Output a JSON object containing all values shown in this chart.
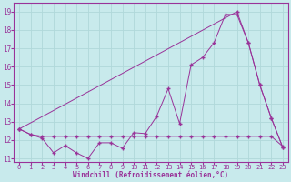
{
  "xlabel": "Windchill (Refroidissement éolien,°C)",
  "background_color": "#c8eaec",
  "grid_color": "#b0d8da",
  "line_color": "#993399",
  "xlim": [
    -0.5,
    23.5
  ],
  "ylim": [
    10.8,
    19.5
  ],
  "xticks": [
    0,
    1,
    2,
    3,
    4,
    5,
    6,
    7,
    8,
    9,
    10,
    11,
    12,
    13,
    14,
    15,
    16,
    17,
    18,
    19,
    20,
    21,
    22,
    23
  ],
  "yticks": [
    11,
    12,
    13,
    14,
    15,
    16,
    17,
    18,
    19
  ],
  "line1_x": [
    0,
    1,
    2,
    3,
    4,
    5,
    6,
    7,
    8,
    9,
    10,
    11,
    12,
    13,
    14,
    15,
    16,
    17,
    18,
    19,
    20,
    21,
    22,
    23
  ],
  "line1_y": [
    12.6,
    12.3,
    12.1,
    11.3,
    11.7,
    11.3,
    11.0,
    11.85,
    11.85,
    11.55,
    12.4,
    12.35,
    13.3,
    14.8,
    12.9,
    16.1,
    16.5,
    17.3,
    18.85,
    18.85,
    17.3,
    15.0,
    13.2,
    11.6
  ],
  "line2_x": [
    0,
    1,
    2,
    3,
    4,
    5,
    6,
    7,
    8,
    9,
    10,
    11,
    12,
    13,
    14,
    15,
    16,
    17,
    18,
    19,
    20,
    21,
    22,
    23
  ],
  "line2_y": [
    12.6,
    12.3,
    12.2,
    12.2,
    12.2,
    12.2,
    12.2,
    12.2,
    12.2,
    12.2,
    12.2,
    12.2,
    12.2,
    12.2,
    12.2,
    12.2,
    12.2,
    12.2,
    12.2,
    12.2,
    12.2,
    12.2,
    12.2,
    11.65
  ],
  "line3_x": [
    0,
    19,
    20,
    21,
    22,
    23
  ],
  "line3_y": [
    12.6,
    19.0,
    17.3,
    15.0,
    13.2,
    11.6
  ]
}
